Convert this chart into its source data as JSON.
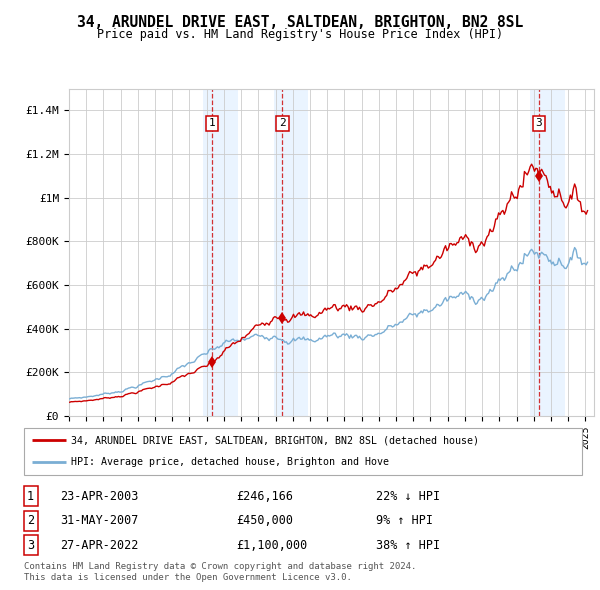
{
  "title": "34, ARUNDEL DRIVE EAST, SALTDEAN, BRIGHTON, BN2 8SL",
  "subtitle": "Price paid vs. HM Land Registry's House Price Index (HPI)",
  "ylabel_ticks": [
    "£0",
    "£200K",
    "£400K",
    "£600K",
    "£800K",
    "£1M",
    "£1.2M",
    "£1.4M"
  ],
  "ytick_values": [
    0,
    200000,
    400000,
    600000,
    800000,
    1000000,
    1200000,
    1400000
  ],
  "ylim": [
    0,
    1500000
  ],
  "xlim_start": 1995.0,
  "xlim_end": 2025.5,
  "sales": [
    {
      "num": 1,
      "date": "23-APR-2003",
      "year": 2003.3,
      "price": 246166,
      "pct": "22%",
      "dir": "↓"
    },
    {
      "num": 2,
      "date": "31-MAY-2007",
      "year": 2007.4,
      "price": 450000,
      "pct": "9%",
      "dir": "↑"
    },
    {
      "num": 3,
      "date": "27-APR-2022",
      "year": 2022.3,
      "price": 1100000,
      "pct": "38%",
      "dir": "↑"
    }
  ],
  "legend_label_red": "34, ARUNDEL DRIVE EAST, SALTDEAN, BRIGHTON, BN2 8SL (detached house)",
  "legend_label_blue": "HPI: Average price, detached house, Brighton and Hove",
  "footer_line1": "Contains HM Land Registry data © Crown copyright and database right 2024.",
  "footer_line2": "This data is licensed under the Open Government Licence v3.0.",
  "red_color": "#cc0000",
  "blue_color": "#7aaed4",
  "shade_color": "#ddeeff",
  "grid_color": "#cccccc",
  "background_color": "#ffffff"
}
